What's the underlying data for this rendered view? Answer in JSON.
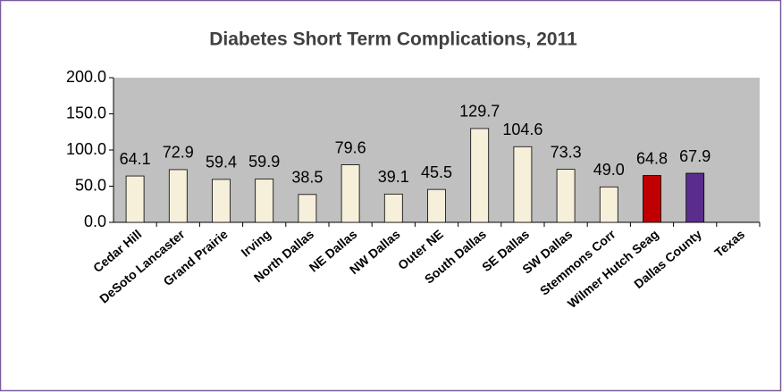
{
  "chart_data": {
    "type": "bar",
    "title": "Diabetes Short Term Complications, 2011",
    "categories": [
      "Cedar Hill",
      "DeSoto Lancaster",
      "Grand Prairie",
      "Irving",
      "North Dallas",
      "NE Dallas",
      "NW Dallas",
      "Outer NE",
      "South Dallas",
      "SE Dallas",
      "SW Dallas",
      "Stemmons Corr",
      "Wilmer Hutch Seag",
      "Dallas County",
      "Texas"
    ],
    "values": [
      64.1,
      72.9,
      59.4,
      59.9,
      38.5,
      79.6,
      39.1,
      45.5,
      129.7,
      104.6,
      73.3,
      49.0,
      64.8,
      67.9,
      null
    ],
    "value_labels": [
      "64.1",
      "72.9",
      "59.4",
      "59.9",
      "38.5",
      "79.6",
      "39.1",
      "45.5",
      "129.7",
      "104.6",
      "73.3",
      "49.0",
      "64.8",
      "67.9",
      null
    ],
    "colors": [
      "#f6f0da",
      "#f6f0da",
      "#f6f0da",
      "#f6f0da",
      "#f6f0da",
      "#f6f0da",
      "#f6f0da",
      "#f6f0da",
      "#f6f0da",
      "#f6f0da",
      "#f6f0da",
      "#f6f0da",
      "#c00000",
      "#5a2d8c",
      "#f6f0da"
    ],
    "ylim": [
      0,
      200
    ],
    "yticks": [
      {
        "value": 0,
        "label": "0.0"
      },
      {
        "value": 50,
        "label": "50.0"
      },
      {
        "value": 100,
        "label": "100.0"
      },
      {
        "value": 150,
        "label": "150.0"
      },
      {
        "value": 200,
        "label": "200.0"
      }
    ],
    "plot_background": "#c0c0c0"
  }
}
